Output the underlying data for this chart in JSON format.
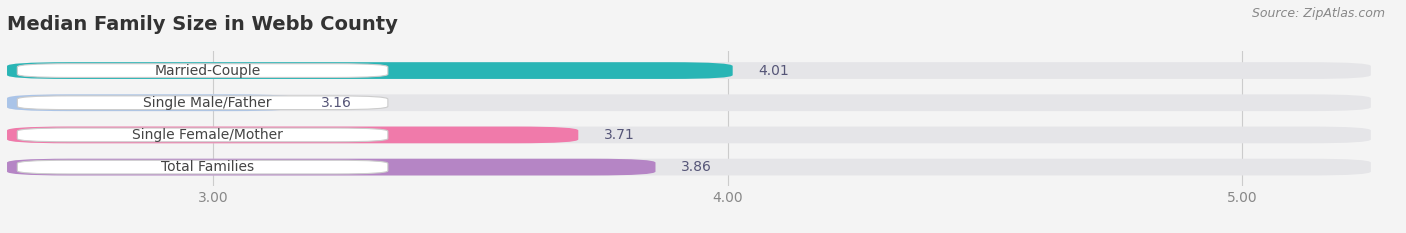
{
  "title": "Median Family Size in Webb County",
  "source": "Source: ZipAtlas.com",
  "categories": [
    "Married-Couple",
    "Single Male/Father",
    "Single Female/Mother",
    "Total Families"
  ],
  "values": [
    4.01,
    3.16,
    3.71,
    3.86
  ],
  "colors": [
    "#29b5b5",
    "#aac4e8",
    "#f07aaa",
    "#b585c5"
  ],
  "xlim_left": 2.6,
  "xlim_right": 5.25,
  "xstart": 2.6,
  "xticks": [
    3.0,
    4.0,
    5.0
  ],
  "xtick_labels": [
    "3.00",
    "4.00",
    "5.00"
  ],
  "bar_height": 0.52,
  "background_color": "#f4f4f4",
  "bar_background_color": "#e5e5e8",
  "title_fontsize": 14,
  "label_fontsize": 10,
  "value_fontsize": 10,
  "source_fontsize": 9
}
